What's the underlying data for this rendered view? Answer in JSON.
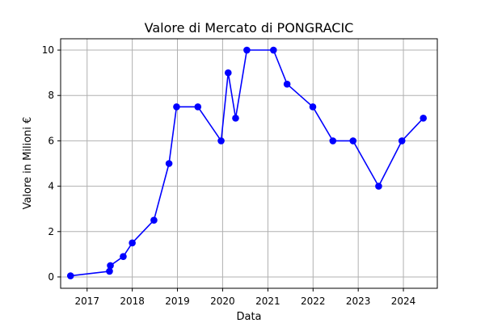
{
  "chart_data": {
    "type": "line",
    "title": "Valore di Mercato di PONGRACIC",
    "xlabel": "Data",
    "ylabel": "Valore in Milioni €",
    "xlim": [
      "2016-06-01",
      "2024-10-01"
    ],
    "ylim": [
      -0.5,
      10.5
    ],
    "x_ticks": [
      {
        "date": "2017-01-01",
        "label": "2017"
      },
      {
        "date": "2018-01-01",
        "label": "2018"
      },
      {
        "date": "2019-01-01",
        "label": "2019"
      },
      {
        "date": "2020-01-01",
        "label": "2020"
      },
      {
        "date": "2021-01-01",
        "label": "2021"
      },
      {
        "date": "2022-01-01",
        "label": "2022"
      },
      {
        "date": "2023-01-01",
        "label": "2023"
      },
      {
        "date": "2024-01-01",
        "label": "2024"
      }
    ],
    "y_ticks": [
      {
        "value": 0,
        "label": "0"
      },
      {
        "value": 2,
        "label": "2"
      },
      {
        "value": 4,
        "label": "4"
      },
      {
        "value": 6,
        "label": "6"
      },
      {
        "value": 8,
        "label": "8"
      },
      {
        "value": 10,
        "label": "10"
      }
    ],
    "grid": true,
    "series": [
      {
        "color": "#0000ff",
        "marker": "circle",
        "points": [
          {
            "x": "2016-08-20",
            "y": 0.05
          },
          {
            "x": "2017-07-01",
            "y": 0.25
          },
          {
            "x": "2017-07-08",
            "y": 0.5
          },
          {
            "x": "2017-10-20",
            "y": 0.9
          },
          {
            "x": "2018-01-01",
            "y": 1.5
          },
          {
            "x": "2018-06-25",
            "y": 2.5
          },
          {
            "x": "2018-10-25",
            "y": 5.0
          },
          {
            "x": "2018-12-25",
            "y": 7.5
          },
          {
            "x": "2019-06-15",
            "y": 7.5
          },
          {
            "x": "2019-12-20",
            "y": 6.0
          },
          {
            "x": "2020-02-15",
            "y": 9.0
          },
          {
            "x": "2020-04-15",
            "y": 7.0
          },
          {
            "x": "2020-07-15",
            "y": 10.0
          },
          {
            "x": "2021-02-15",
            "y": 10.0
          },
          {
            "x": "2021-06-05",
            "y": 8.5
          },
          {
            "x": "2021-12-30",
            "y": 7.5
          },
          {
            "x": "2022-06-10",
            "y": 6.0
          },
          {
            "x": "2022-11-20",
            "y": 6.0
          },
          {
            "x": "2023-06-15",
            "y": 4.0
          },
          {
            "x": "2023-12-20",
            "y": 6.0
          },
          {
            "x": "2024-06-10",
            "y": 7.0
          }
        ]
      }
    ]
  }
}
